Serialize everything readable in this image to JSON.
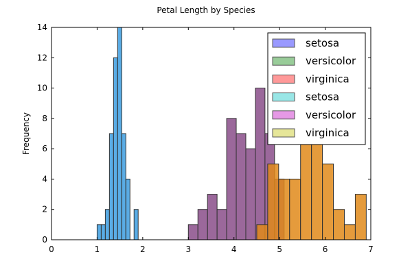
{
  "chart_data": {
    "type": "bar",
    "title": "Petal Length by Species",
    "xlabel": "",
    "ylabel": "Frequency",
    "xlim": [
      0,
      7
    ],
    "ylim": [
      0,
      14
    ],
    "x_ticks": [
      0,
      1,
      2,
      3,
      4,
      5,
      6,
      7
    ],
    "y_ticks": [
      0,
      2,
      4,
      6,
      8,
      10,
      12,
      14
    ],
    "grid": false,
    "legend_position": "top-right",
    "legend": [
      {
        "label": "setosa",
        "color": "#9999ff"
      },
      {
        "label": "versicolor",
        "color": "#99cc99"
      },
      {
        "label": "virginica",
        "color": "#ff9999"
      },
      {
        "label": "setosa",
        "color": "#99e6e6"
      },
      {
        "label": "versicolor",
        "color": "#e699e6"
      },
      {
        "label": "virginica",
        "color": "#e6e699"
      }
    ],
    "series": [
      {
        "color": "#3d9ee0",
        "bins": [
          {
            "x0": 1.0,
            "x1": 1.09,
            "count": 1
          },
          {
            "x0": 1.09,
            "x1": 1.18,
            "count": 1
          },
          {
            "x0": 1.18,
            "x1": 1.27,
            "count": 2
          },
          {
            "x0": 1.27,
            "x1": 1.36,
            "count": 7
          },
          {
            "x0": 1.36,
            "x1": 1.45,
            "count": 12
          },
          {
            "x0": 1.45,
            "x1": 1.54,
            "count": 14
          },
          {
            "x0": 1.54,
            "x1": 1.63,
            "count": 7
          },
          {
            "x0": 1.63,
            "x1": 1.72,
            "count": 4
          },
          {
            "x0": 1.81,
            "x1": 1.9,
            "count": 2
          }
        ]
      },
      {
        "color": "#8a4d8a",
        "bins": [
          {
            "x0": 3.0,
            "x1": 3.21,
            "count": 1
          },
          {
            "x0": 3.21,
            "x1": 3.42,
            "count": 2
          },
          {
            "x0": 3.42,
            "x1": 3.63,
            "count": 3
          },
          {
            "x0": 3.63,
            "x1": 3.84,
            "count": 2
          },
          {
            "x0": 3.84,
            "x1": 4.05,
            "count": 8
          },
          {
            "x0": 4.05,
            "x1": 4.26,
            "count": 7
          },
          {
            "x0": 4.26,
            "x1": 4.47,
            "count": 6
          },
          {
            "x0": 4.47,
            "x1": 4.68,
            "count": 10
          },
          {
            "x0": 4.68,
            "x1": 4.89,
            "count": 7
          },
          {
            "x0": 4.89,
            "x1": 5.1,
            "count": 4
          }
        ]
      },
      {
        "color": "#e08a1a",
        "bins": [
          {
            "x0": 4.5,
            "x1": 4.74,
            "count": 1
          },
          {
            "x0": 4.74,
            "x1": 4.98,
            "count": 5
          },
          {
            "x0": 4.98,
            "x1": 5.22,
            "count": 4
          },
          {
            "x0": 5.22,
            "x1": 5.46,
            "count": 4
          },
          {
            "x0": 5.46,
            "x1": 5.7,
            "count": 7
          },
          {
            "x0": 5.7,
            "x1": 5.94,
            "count": 7
          },
          {
            "x0": 5.94,
            "x1": 6.18,
            "count": 5
          },
          {
            "x0": 6.18,
            "x1": 6.42,
            "count": 2
          },
          {
            "x0": 6.42,
            "x1": 6.66,
            "count": 1
          },
          {
            "x0": 6.66,
            "x1": 6.9,
            "count": 3
          }
        ]
      }
    ]
  }
}
